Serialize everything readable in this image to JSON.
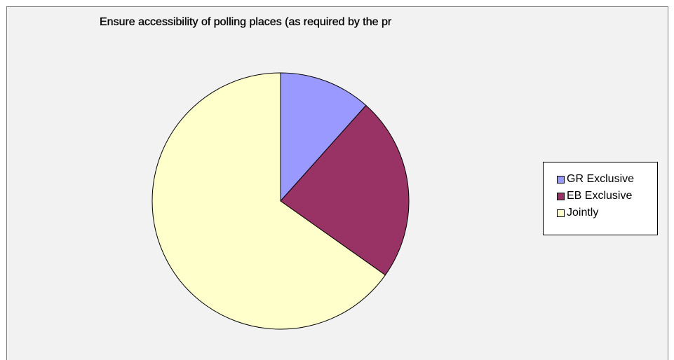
{
  "chart_data": {
    "type": "pie",
    "title": "Ensure accessibility of polling places (as required by the pr",
    "categories": [
      "GR Exclusive",
      "EB Exclusive",
      "Jointly"
    ],
    "values": [
      11.6,
      23.2,
      65.2
    ],
    "colors": [
      "#9999ff",
      "#993366",
      "#ffffcc"
    ],
    "legend_position": "right"
  }
}
